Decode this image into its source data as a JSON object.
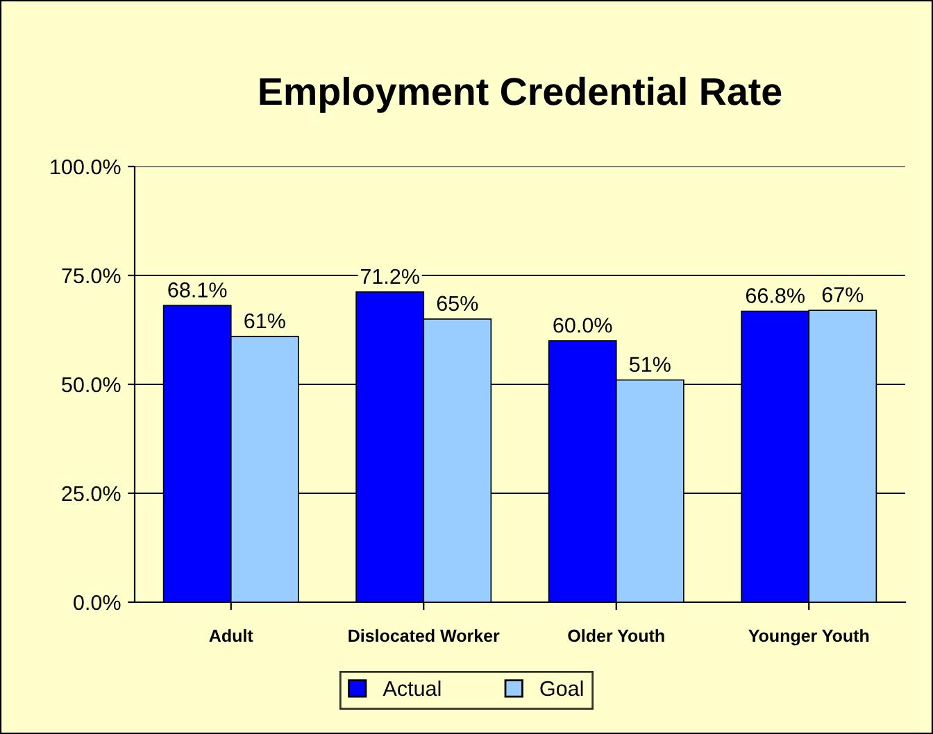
{
  "chart_data": {
    "type": "bar",
    "title": "Employment Credential Rate",
    "categories": [
      "Adult",
      "Dislocated Worker",
      "Older Youth",
      "Younger Youth"
    ],
    "series": [
      {
        "name": "Actual",
        "color": "#0000ff",
        "values": [
          68.1,
          71.2,
          60.0,
          66.8
        ],
        "value_labels": [
          "68.1%",
          "71.2%",
          "60.0%",
          "66.8%"
        ]
      },
      {
        "name": "Goal",
        "color": "#99ccff",
        "values": [
          61,
          65,
          51,
          67
        ],
        "value_labels": [
          "61%",
          "65%",
          "51%",
          "67%"
        ]
      }
    ],
    "ylim": [
      0,
      100
    ],
    "yticks": [
      {
        "value": 0,
        "label": "0.0%"
      },
      {
        "value": 25,
        "label": "25.0%"
      },
      {
        "value": 50,
        "label": "50.0%"
      },
      {
        "value": 75,
        "label": "75.0%"
      },
      {
        "value": 100,
        "label": "100.0%"
      }
    ],
    "grid": "y",
    "legend": "bottom"
  }
}
